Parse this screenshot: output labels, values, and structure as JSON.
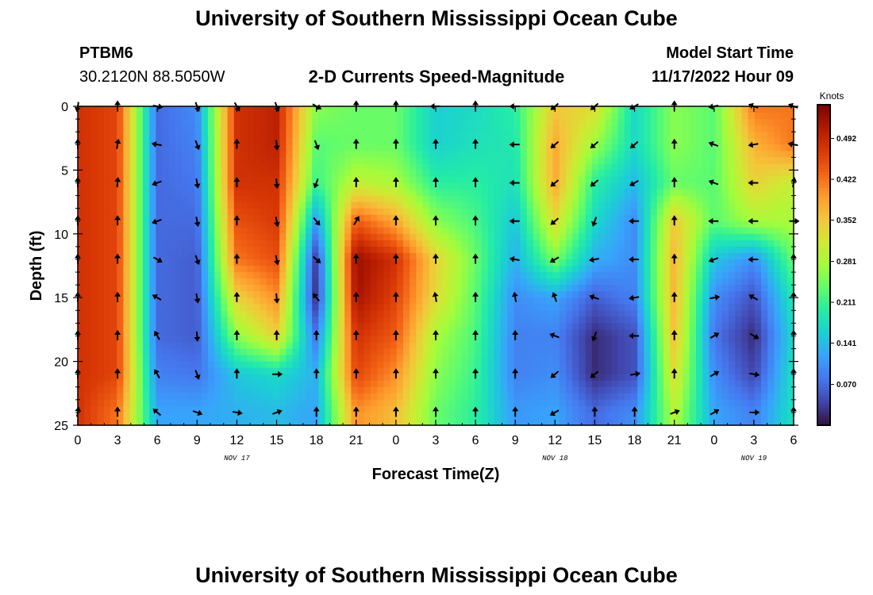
{
  "header": {
    "title": "University of Southern Mississippi Ocean Cube",
    "station": "PTBM6",
    "coords": "30.2120N  88.5050W",
    "subtitle": "2-D Currents Speed-Magnitude",
    "start_label": "Model Start Time",
    "start_time": "11/17/2022 Hour 09"
  },
  "footer": {
    "title": "University of Southern Mississippi Ocean Cube"
  },
  "chart_data": {
    "type": "heatmap",
    "title": "2-D Currents Speed-Magnitude",
    "xlabel": "Forecast Time(Z)",
    "ylabel": "Depth (ft)",
    "x_hours": [
      0,
      3,
      6,
      9,
      12,
      15,
      18,
      21,
      24,
      27,
      30,
      33,
      36,
      39,
      42,
      45,
      48,
      51,
      54
    ],
    "x_tick_labels": [
      "0",
      "3",
      "6",
      "9",
      "12",
      "15",
      "18",
      "21",
      "0",
      "3",
      "6",
      "9",
      "12",
      "15",
      "18",
      "21",
      "0",
      "3",
      "6"
    ],
    "xlim": [
      0,
      54
    ],
    "date_labels": [
      {
        "hour": 12,
        "text": "NOV 17"
      },
      {
        "hour": 36,
        "text": "NOV 18"
      },
      {
        "hour": 51,
        "text": "NOV 19"
      }
    ],
    "y_depths": [
      0,
      3,
      6,
      9,
      12,
      15,
      18,
      21,
      24
    ],
    "y_ticks": [
      0,
      5,
      10,
      15,
      20,
      25
    ],
    "y_tick_labels": [
      "0",
      "5",
      "10",
      "15",
      "20",
      "25"
    ],
    "ylim": [
      0,
      25
    ],
    "colorbar": {
      "label": "Knots",
      "ticks": [
        0.492,
        0.422,
        0.352,
        0.281,
        0.211,
        0.141,
        0.07
      ],
      "tick_labels": [
        "0.492",
        "0.422",
        "0.352",
        "0.281",
        "0.211",
        "0.141",
        "0.070"
      ],
      "range": [
        0.0,
        0.55
      ],
      "colors": [
        "#30123b",
        "#4145ab",
        "#4675ed",
        "#39a2fc",
        "#1bcfd4",
        "#24eca6",
        "#61fc6c",
        "#a4fc3b",
        "#d1e834",
        "#f3c63a",
        "#fe9b2d",
        "#f36315",
        "#d93806",
        "#b11901",
        "#7a0402"
      ]
    },
    "speed": [
      [
        0.48,
        0.48,
        0.48,
        0.48,
        0.48,
        0.48,
        0.48,
        0.48,
        0.48
      ],
      [
        0.46,
        0.46,
        0.46,
        0.46,
        0.46,
        0.46,
        0.46,
        0.46,
        0.42
      ],
      [
        0.07,
        0.07,
        0.07,
        0.07,
        0.07,
        0.07,
        0.07,
        0.09,
        0.12
      ],
      [
        0.1,
        0.09,
        0.08,
        0.07,
        0.06,
        0.06,
        0.06,
        0.08,
        0.12
      ],
      [
        0.48,
        0.48,
        0.48,
        0.45,
        0.42,
        0.34,
        0.26,
        0.15,
        0.13
      ],
      [
        0.5,
        0.5,
        0.48,
        0.47,
        0.45,
        0.4,
        0.34,
        0.17,
        0.14
      ],
      [
        0.26,
        0.23,
        0.21,
        0.11,
        0.03,
        0.02,
        0.08,
        0.13,
        0.12
      ],
      [
        0.24,
        0.24,
        0.3,
        0.44,
        0.53,
        0.52,
        0.48,
        0.46,
        0.4
      ],
      [
        0.24,
        0.24,
        0.28,
        0.38,
        0.48,
        0.46,
        0.44,
        0.4,
        0.36
      ],
      [
        0.16,
        0.16,
        0.2,
        0.26,
        0.34,
        0.33,
        0.28,
        0.26,
        0.24
      ],
      [
        0.17,
        0.18,
        0.2,
        0.22,
        0.24,
        0.23,
        0.22,
        0.21,
        0.2
      ],
      [
        0.2,
        0.19,
        0.18,
        0.15,
        0.13,
        0.1,
        0.09,
        0.09,
        0.11
      ],
      [
        0.35,
        0.38,
        0.38,
        0.33,
        0.25,
        0.12,
        0.09,
        0.1,
        0.12
      ],
      [
        0.33,
        0.27,
        0.2,
        0.17,
        0.13,
        0.06,
        0.02,
        0.02,
        0.07
      ],
      [
        0.17,
        0.17,
        0.14,
        0.1,
        0.1,
        0.09,
        0.05,
        0.05,
        0.1
      ],
      [
        0.26,
        0.26,
        0.24,
        0.35,
        0.37,
        0.37,
        0.36,
        0.33,
        0.29
      ],
      [
        0.23,
        0.23,
        0.23,
        0.23,
        0.15,
        0.1,
        0.08,
        0.1,
        0.12
      ],
      [
        0.42,
        0.37,
        0.34,
        0.28,
        0.1,
        0.05,
        0.02,
        0.04,
        0.09
      ],
      [
        0.42,
        0.42,
        0.3,
        0.28,
        0.24,
        0.19,
        0.17,
        0.18,
        0.18
      ]
    ],
    "direction_deg": [
      [
        190,
        0,
        0,
        0,
        0,
        0,
        0,
        0,
        10
      ],
      [
        0,
        10,
        5,
        0,
        0,
        0,
        0,
        0,
        0
      ],
      [
        100,
        280,
        250,
        250,
        120,
        300,
        330,
        330,
        310
      ],
      [
        160,
        160,
        170,
        170,
        160,
        170,
        175,
        160,
        110
      ],
      [
        150,
        0,
        0,
        0,
        0,
        0,
        0,
        0,
        100
      ],
      [
        160,
        175,
        175,
        170,
        170,
        175,
        0,
        90,
        70
      ],
      [
        120,
        160,
        200,
        140,
        130,
        320,
        0,
        0,
        0
      ],
      [
        0,
        0,
        0,
        30,
        0,
        0,
        0,
        0,
        0
      ],
      [
        0,
        0,
        0,
        0,
        0,
        0,
        0,
        0,
        0
      ],
      [
        270,
        0,
        0,
        0,
        0,
        350,
        0,
        0,
        0
      ],
      [
        0,
        0,
        0,
        0,
        0,
        0,
        0,
        0,
        0
      ],
      [
        270,
        270,
        270,
        270,
        280,
        350,
        0,
        0,
        0
      ],
      [
        230,
        230,
        230,
        230,
        240,
        340,
        290,
        230,
        240
      ],
      [
        230,
        230,
        230,
        200,
        260,
        290,
        200,
        230,
        0
      ],
      [
        240,
        230,
        240,
        270,
        270,
        260,
        270,
        80,
        0
      ],
      [
        0,
        0,
        0,
        0,
        0,
        0,
        0,
        0,
        70
      ],
      [
        260,
        290,
        290,
        270,
        250,
        80,
        60,
        60,
        60
      ],
      [
        290,
        260,
        270,
        270,
        270,
        300,
        120,
        100,
        90
      ],
      [
        290,
        280,
        10,
        90,
        0,
        0,
        0,
        0,
        0
      ]
    ]
  }
}
